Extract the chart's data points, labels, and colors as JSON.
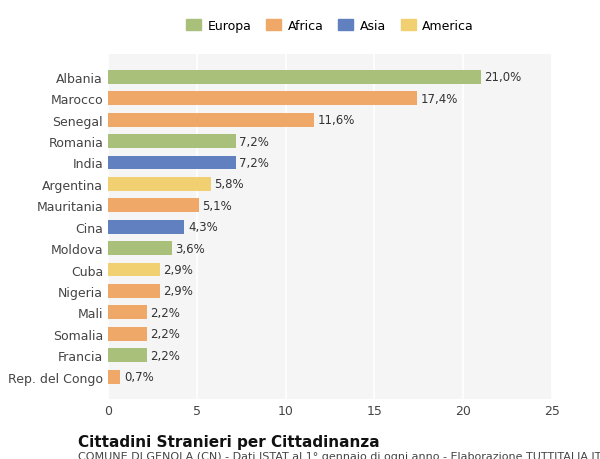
{
  "countries": [
    "Albania",
    "Marocco",
    "Senegal",
    "Romania",
    "India",
    "Argentina",
    "Mauritania",
    "Cina",
    "Moldova",
    "Cuba",
    "Nigeria",
    "Mali",
    "Somalia",
    "Francia",
    "Rep. del Congo"
  ],
  "values": [
    21.0,
    17.4,
    11.6,
    7.2,
    7.2,
    5.8,
    5.1,
    4.3,
    3.6,
    2.9,
    2.9,
    2.2,
    2.2,
    2.2,
    0.7
  ],
  "labels": [
    "21,0%",
    "17,4%",
    "11,6%",
    "7,2%",
    "7,2%",
    "5,8%",
    "5,1%",
    "4,3%",
    "3,6%",
    "2,9%",
    "2,9%",
    "2,2%",
    "2,2%",
    "2,2%",
    "0,7%"
  ],
  "continents": [
    "Europa",
    "Africa",
    "Africa",
    "Europa",
    "Asia",
    "America",
    "Africa",
    "Asia",
    "Europa",
    "America",
    "Africa",
    "Africa",
    "Africa",
    "Europa",
    "Africa"
  ],
  "continent_colors": {
    "Europa": "#a8c07a",
    "Africa": "#f0a868",
    "Asia": "#6080c0",
    "America": "#f0d070"
  },
  "legend_order": [
    "Europa",
    "Africa",
    "Asia",
    "America"
  ],
  "xlim": [
    0,
    25
  ],
  "xticks": [
    0,
    5,
    10,
    15,
    20,
    25
  ],
  "title": "Cittadini Stranieri per Cittadinanza",
  "subtitle": "COMUNE DI GENOLA (CN) - Dati ISTAT al 1° gennaio di ogni anno - Elaborazione TUTTITALIA.IT",
  "bg_color": "#ffffff",
  "plot_bg_color": "#f5f5f5",
  "grid_color": "#ffffff",
  "bar_height": 0.65,
  "title_fontsize": 11,
  "subtitle_fontsize": 8,
  "tick_fontsize": 9,
  "label_fontsize": 8.5,
  "legend_fontsize": 9
}
